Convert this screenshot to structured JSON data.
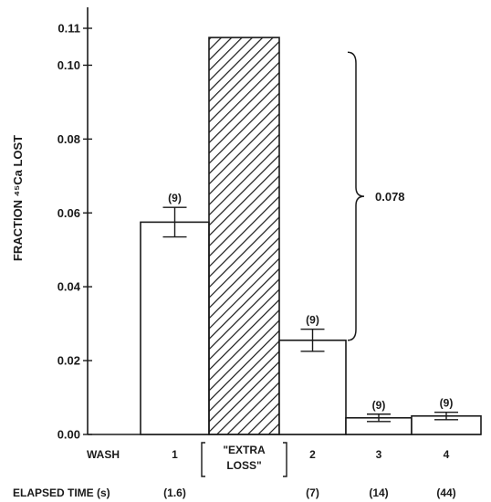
{
  "chart_data": {
    "type": "bar",
    "ylabel": "FRACTION ⁴⁵Ca LOST",
    "ylim": [
      0,
      0.11
    ],
    "yticks": [
      "0.00",
      "0.02",
      "0.04",
      "0.06",
      "0.08",
      "0.10",
      "0.11"
    ],
    "ytick_values": [
      0,
      0.02,
      0.04,
      0.06,
      0.08,
      0.1,
      0.11
    ],
    "row_label_wash": "WASH",
    "row_label_time": "ELAPSED TIME (s)",
    "bars": [
      {
        "category": "1",
        "value": 0.0575,
        "error_low": 0.0535,
        "error_high": 0.0615,
        "n_label": "(9)",
        "elapsed_time": "(1.6)",
        "pattern": "open"
      },
      {
        "category_lines": [
          "\"EXTRA",
          "LOSS\""
        ],
        "value": 0.1075,
        "pattern": "hatched"
      },
      {
        "category": "2",
        "value": 0.0255,
        "error_low": 0.0225,
        "error_high": 0.0285,
        "n_label": "(9)",
        "elapsed_time": "(7)",
        "pattern": "open"
      },
      {
        "category": "3",
        "value": 0.0045,
        "error_low": 0.0035,
        "error_high": 0.0055,
        "n_label": "(9)",
        "elapsed_time": "(14)",
        "pattern": "open"
      },
      {
        "category": "4",
        "value": 0.005,
        "error_low": 0.004,
        "error_high": 0.006,
        "n_label": "(9)",
        "elapsed_time": "(44)",
        "pattern": "open"
      }
    ],
    "annotation": {
      "text": "0.078",
      "from": 0.0255,
      "to": 0.1035
    },
    "colors": {
      "ink": "#1a1a1a",
      "background": "#ffffff"
    }
  }
}
